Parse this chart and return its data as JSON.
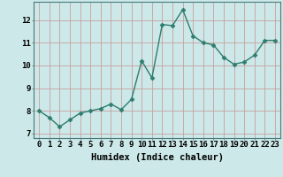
{
  "x": [
    0,
    1,
    2,
    3,
    4,
    5,
    6,
    7,
    8,
    9,
    10,
    11,
    12,
    13,
    14,
    15,
    16,
    17,
    18,
    19,
    20,
    21,
    22,
    23
  ],
  "y": [
    8.0,
    7.7,
    7.3,
    7.6,
    7.9,
    8.0,
    8.1,
    8.3,
    8.05,
    8.5,
    10.2,
    9.45,
    11.8,
    11.75,
    12.45,
    11.3,
    11.0,
    10.9,
    10.35,
    10.05,
    10.15,
    10.45,
    11.1,
    11.1
  ],
  "line_color": "#2e7d6e",
  "marker": "D",
  "markersize": 2.5,
  "linewidth": 1.0,
  "bg_color": "#cce8e8",
  "grid_color": "#c8a0a0",
  "xlabel": "Humidex (Indice chaleur)",
  "xlabel_fontsize": 7.5,
  "xtick_labels": [
    "0",
    "1",
    "2",
    "3",
    "4",
    "5",
    "6",
    "7",
    "8",
    "9",
    "10",
    "11",
    "12",
    "13",
    "14",
    "15",
    "16",
    "17",
    "18",
    "19",
    "20",
    "21",
    "22",
    "23"
  ],
  "ytick_labels": [
    "7",
    "8",
    "9",
    "10",
    "11",
    "12"
  ],
  "ylim": [
    6.8,
    12.8
  ],
  "xlim": [
    -0.5,
    23.5
  ],
  "tick_fontsize": 6.5,
  "ytick_values": [
    7,
    8,
    9,
    10,
    11,
    12
  ]
}
